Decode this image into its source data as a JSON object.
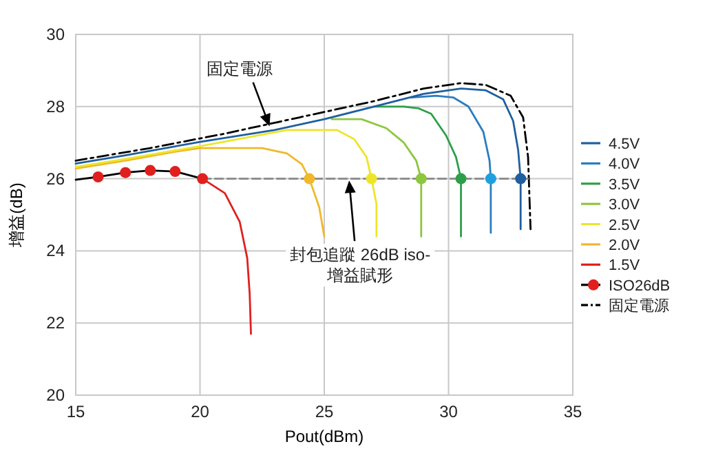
{
  "chart_data": {
    "type": "line",
    "xlabel": "Pout(dBm)",
    "ylabel": "增益(dB)",
    "xlim": [
      15,
      35
    ],
    "ylim": [
      20,
      30
    ],
    "xticks": [
      15,
      20,
      25,
      30,
      35
    ],
    "yticks": [
      20,
      22,
      24,
      26,
      28,
      30
    ],
    "grid": true,
    "legend": "right",
    "series": [
      {
        "name": "4.5V",
        "color": "#1f5f9f",
        "x": [
          15,
          17,
          20,
          23,
          25,
          27,
          29,
          30.5,
          31.5,
          32.2,
          32.6,
          32.8,
          32.9,
          32.9
        ],
        "values": [
          26.42,
          26.65,
          27.02,
          27.35,
          27.65,
          28.0,
          28.35,
          28.5,
          28.45,
          28.2,
          27.6,
          26.8,
          26.0,
          24.6
        ]
      },
      {
        "name": "4.0V",
        "color": "#2b7cc0",
        "x": [
          28.5,
          29.5,
          30.2,
          30.8,
          31.4,
          31.65,
          31.7,
          31.7
        ],
        "values": [
          28.25,
          28.3,
          28.25,
          28.0,
          27.3,
          26.5,
          26.0,
          24.5
        ]
      },
      {
        "name": "3.5V",
        "color": "#2ca048",
        "x": [
          27,
          28.2,
          28.8,
          29.3,
          29.9,
          30.3,
          30.5,
          30.5
        ],
        "values": [
          28.0,
          28.0,
          27.95,
          27.8,
          27.2,
          26.6,
          26.0,
          24.4
        ]
      },
      {
        "name": "3.0V",
        "color": "#8dc63f",
        "x": [
          25.3,
          26.5,
          27.5,
          28.2,
          28.7,
          28.9,
          28.9
        ],
        "values": [
          27.65,
          27.65,
          27.4,
          27.0,
          26.5,
          26.0,
          24.4
        ]
      },
      {
        "name": "2.5V",
        "color": "#ede52a",
        "x": [
          15,
          17,
          20,
          23.5,
          25.5,
          26.2,
          26.7,
          26.9,
          27.1,
          27.1
        ],
        "values": [
          26.33,
          26.55,
          26.9,
          27.35,
          27.35,
          27.1,
          26.6,
          26.0,
          25.3,
          24.4
        ]
      },
      {
        "name": "2.0V",
        "color": "#f0b82a",
        "x": [
          15,
          17,
          19,
          20,
          22.5,
          23.5,
          24.1,
          24.4,
          24.8,
          25
        ],
        "values": [
          26.28,
          26.5,
          26.75,
          26.85,
          26.85,
          26.7,
          26.4,
          26.0,
          25.2,
          24.4
        ]
      },
      {
        "name": "1.5V",
        "color": "#e0201e",
        "x": [
          20.1,
          21,
          21.6,
          21.9,
          22,
          22.05
        ],
        "values": [
          26.0,
          25.6,
          24.8,
          23.8,
          22.8,
          21.7
        ]
      },
      {
        "name": "ISO26dB",
        "color": "#000000",
        "marker": "circle",
        "colors": [
          null,
          "#e0201e",
          "#e0201e",
          "#e0201e",
          "#e0201e",
          "#e0201e"
        ],
        "x": [
          15,
          15.9,
          17,
          18,
          19,
          20.1
        ],
        "values": [
          25.97,
          26.05,
          26.17,
          26.23,
          26.2,
          26.0
        ]
      },
      {
        "type": "line",
        "color": "#888888",
        "line_style": "dashed",
        "x": [
          20.1,
          33.2
        ],
        "values": [
          26,
          26
        ]
      },
      {
        "type": "scatter",
        "marker": "circle",
        "colors": [
          "#f0b82a",
          "#ede52a",
          "#8dc63f",
          "#2ca048",
          "#1ea0e0",
          "#1f5f9f"
        ],
        "x": [
          24.4,
          26.9,
          28.9,
          30.5,
          31.7,
          32.9
        ],
        "values": [
          26,
          26,
          26,
          26,
          26,
          26
        ]
      },
      {
        "name": "固定電源",
        "color": "#000000",
        "line_style": "dashdot",
        "x": [
          15,
          18,
          21,
          24,
          27,
          29,
          30.5,
          31.5,
          32.5,
          33,
          33.2,
          33.3
        ],
        "values": [
          26.5,
          26.85,
          27.25,
          27.7,
          28.15,
          28.5,
          28.65,
          28.6,
          28.3,
          27.7,
          26.6,
          24.6
        ]
      }
    ],
    "annotations": [
      {
        "text": "固定電源",
        "x": 22.8,
        "y": 27.45
      },
      {
        "text": "封包追蹤 26dB iso-\n增益賦形",
        "x": 26,
        "y": 25.95
      }
    ]
  }
}
